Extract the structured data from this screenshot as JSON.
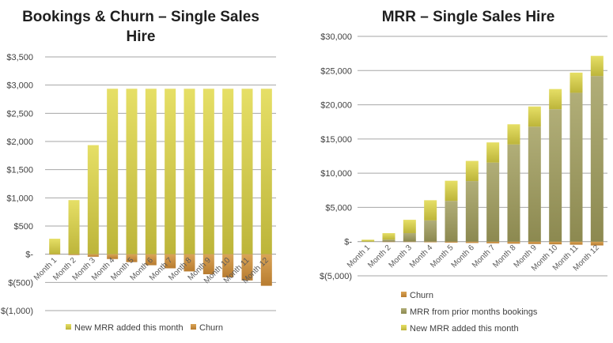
{
  "chart_data": [
    {
      "type": "bar",
      "stacked": true,
      "title": "Bookings & Churn – Single Sales Hire",
      "title_lines": [
        "Bookings & Churn – Single Sales",
        "Hire"
      ],
      "categories": [
        "Month 1",
        "Month 2",
        "Month 3",
        "Month 4",
        "Month 5",
        "Month 6",
        "Month 7",
        "Month 8",
        "Month 9",
        "Month 10",
        "Month 11",
        "Month 12"
      ],
      "series": [
        {
          "name": "New MRR added this month",
          "color": "#d4cc4e",
          "values": [
            275,
            960,
            1935,
            2935,
            2935,
            2935,
            2935,
            2935,
            2935,
            2935,
            2935,
            2935
          ]
        },
        {
          "name": "Churn",
          "color": "#c9923e",
          "values": [
            -5,
            -15,
            -45,
            -85,
            -140,
            -195,
            -250,
            -305,
            -355,
            -410,
            -465,
            -560
          ]
        }
      ],
      "ylim": [
        -1000,
        3500
      ],
      "yticks": [
        -1000,
        -500,
        0,
        500,
        1000,
        1500,
        2000,
        2500,
        3000,
        3500
      ],
      "ytick_labels": [
        "$(1,000)",
        "$(500)",
        "$-",
        "$500",
        "$1,000",
        "$1,500",
        "$2,000",
        "$2,500",
        "$3,000",
        "$3,500"
      ],
      "grid": true,
      "legend": [
        "New MRR added this month",
        "Churn"
      ],
      "legend_position": "bottom"
    },
    {
      "type": "bar",
      "stacked": true,
      "title": "MRR – Single Sales Hire",
      "title_lines": [
        "MRR – Single Sales Hire"
      ],
      "categories": [
        "Month 1",
        "Month 2",
        "Month 3",
        "Month 4",
        "Month 5",
        "Month 6",
        "Month 7",
        "Month 8",
        "Month 9",
        "Month 10",
        "Month 11",
        "Month 12"
      ],
      "series": [
        {
          "name": "Churn",
          "color": "#c9923e",
          "values": [
            0,
            -20,
            -60,
            -100,
            -150,
            -200,
            -250,
            -300,
            -350,
            -400,
            -450,
            -560
          ]
        },
        {
          "name": "MRR from prior months bookings",
          "color": "#a6a36a",
          "values": [
            0,
            290,
            1240,
            3100,
            5950,
            8850,
            11550,
            14200,
            16800,
            19350,
            21750,
            24200
          ]
        },
        {
          "name": "New MRR added this month",
          "color": "#d4cc4e",
          "values": [
            280,
            950,
            1950,
            2950,
            2950,
            2950,
            2950,
            2950,
            2950,
            2950,
            2950,
            2950
          ]
        }
      ],
      "ylim": [
        -5000,
        30000
      ],
      "yticks": [
        -5000,
        0,
        5000,
        10000,
        15000,
        20000,
        25000,
        30000
      ],
      "ytick_labels": [
        "$(5,000)",
        "$-",
        "$5,000",
        "$10,000",
        "$15,000",
        "$20,000",
        "$25,000",
        "$30,000"
      ],
      "grid": true,
      "legend": [
        "Churn",
        "MRR from prior months bookings",
        "New MRR added this month"
      ],
      "legend_position": "bottom"
    }
  ]
}
